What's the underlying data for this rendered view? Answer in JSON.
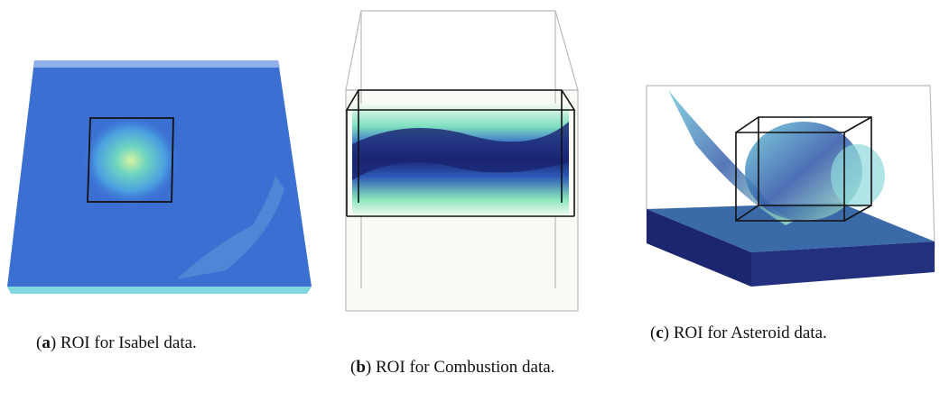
{
  "figures": [
    {
      "open": "(",
      "label": "a",
      "text": ") ROI for Isabel data."
    },
    {
      "open": "(",
      "label": "b",
      "text": ") ROI for Combustion data."
    },
    {
      "open": "(",
      "label": "c",
      "text": ") ROI for Asteroid data."
    }
  ]
}
